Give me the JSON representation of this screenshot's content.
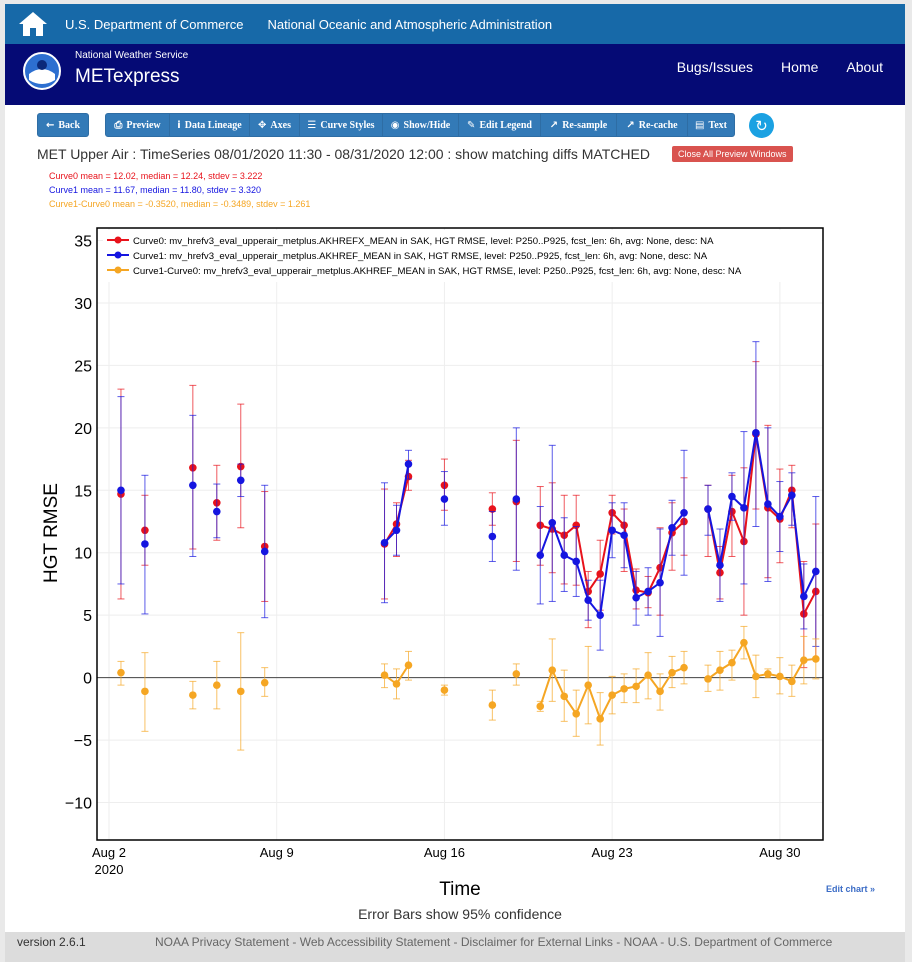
{
  "topbar": {
    "dept": "U.S. Department of Commerce",
    "noaa": "National Oceanic and Atmospheric Administration"
  },
  "navbar": {
    "nws": "National Weather Service",
    "brand": "METexpress",
    "links": [
      "Bugs/Issues",
      "Home",
      "About"
    ]
  },
  "toolbar": {
    "back": "Back",
    "buttons": [
      "Preview",
      "Data Lineage",
      "Axes",
      "Curve Styles",
      "Show/Hide",
      "Edit Legend",
      "Re-sample",
      "Re-cache",
      "Text"
    ]
  },
  "plot_title": "MET Upper Air : TimeSeries 08/01/2020 11:30 - 08/31/2020 12:00 : show matching diffs MATCHED",
  "close_label": "Close All Preview Windows",
  "stats": [
    "Curve0 mean = 12.02, median = 12.24, stdev = 3.222",
    "Curve1 mean = 11.67, median = 11.80, stdev = 3.320",
    "Curve1-Curve0 mean = -0.3520, median = -0.3489, stdev = 1.261"
  ],
  "edit_chart": "Edit chart »",
  "error_note": "Error Bars show 95% confidence",
  "footer": {
    "version": "version 2.6.1",
    "links": "NOAA Privacy Statement - Web Accessibility Statement - Disclaimer for External Links - NOAA - U.S. Department of Commerce"
  },
  "colors": {
    "curve0": "#e8121b",
    "curve1": "#1515e0",
    "diff": "#f5a623",
    "brand_top": "#1769a8",
    "brand_nav": "#050a75"
  },
  "chart_data": {
    "type": "line",
    "xlabel": "Time",
    "ylabel": "HGT RMSE",
    "ylim": [
      -13,
      36
    ],
    "xlim": [
      1.5,
      31.8
    ],
    "x_tick_values": [
      2,
      9,
      16,
      23,
      30
    ],
    "x_ticks": [
      "Aug 2",
      "Aug 9",
      "Aug 16",
      "Aug 23",
      "Aug 30"
    ],
    "x_year": "2020",
    "y_ticks": [
      -10,
      -5,
      0,
      5,
      10,
      15,
      20,
      25,
      30,
      35
    ],
    "legend_position": "top-right",
    "series": [
      {
        "name": "Curve0: mv_hrefv3_eval_upperair_metplus.AKHREFX_MEAN in SAK, HGT RMSE, level: P250..P925, fcst_len: 6h, avg: None, desc: NA",
        "color": "#e8121b",
        "points": [
          [
            2.5,
            14.7,
            6.3,
            23.1
          ],
          [
            3.5,
            11.8,
            9.0,
            14.6
          ],
          [
            5.5,
            16.8,
            10.3,
            23.4
          ],
          [
            6.5,
            14.0,
            11.0,
            17.0
          ],
          [
            7.5,
            16.9,
            12.0,
            21.9
          ],
          [
            8.5,
            10.5,
            6.1,
            14.9
          ],
          [
            13.5,
            10.7,
            6.3,
            15.1
          ],
          [
            14.0,
            12.3,
            9.7,
            14.0
          ],
          [
            14.5,
            16.1,
            15.0,
            17.4
          ],
          [
            16.0,
            15.4,
            13.4,
            17.5
          ],
          [
            18.0,
            13.5,
            12.2,
            14.8
          ],
          [
            19.0,
            14.1,
            9.3,
            19.0
          ],
          [
            20.0,
            12.2,
            9.0,
            15.3
          ],
          [
            20.5,
            11.9,
            8.4,
            15.6
          ],
          [
            21.0,
            11.4,
            7.5,
            14.6
          ],
          [
            21.5,
            12.2,
            7.4,
            14.6
          ],
          [
            22.0,
            6.9,
            4.0,
            8.5
          ],
          [
            22.5,
            8.3,
            5.4,
            11.0
          ],
          [
            23.0,
            13.2,
            11.5,
            14.6
          ],
          [
            23.5,
            12.2,
            8.5,
            13.5
          ],
          [
            24.0,
            7.0,
            5.5,
            8.7
          ],
          [
            24.5,
            6.8,
            5.6,
            8.1
          ],
          [
            25.0,
            8.8,
            5.0,
            12.0
          ],
          [
            25.5,
            11.6,
            8.6,
            14.0
          ],
          [
            26.0,
            12.5,
            9.8,
            16.0
          ],
          [
            27.0,
            13.5,
            9.7,
            15.4
          ],
          [
            27.5,
            8.4,
            6.3,
            10.5
          ],
          [
            28.0,
            13.3,
            9.7,
            16.2
          ],
          [
            28.5,
            10.9,
            5.0,
            16.8
          ],
          [
            29.0,
            19.5,
            13.5,
            25.3
          ],
          [
            29.5,
            13.6,
            8.0,
            20.2
          ],
          [
            30.0,
            12.7,
            9.2,
            16.7
          ],
          [
            30.5,
            15.0,
            12.0,
            17.0
          ],
          [
            31.0,
            5.1,
            0.8,
            9.3
          ],
          [
            31.5,
            6.9,
            1.5,
            12.3
          ]
        ]
      },
      {
        "name": "Curve1: mv_hrefv3_eval_upperair_metplus.AKHREF_MEAN in SAK, HGT RMSE, level: P250..P925, fcst_len: 6h, avg: None, desc: NA",
        "color": "#1515e0",
        "points": [
          [
            2.5,
            15.0,
            7.5,
            22.5
          ],
          [
            3.5,
            10.7,
            5.1,
            16.2
          ],
          [
            5.5,
            15.4,
            9.7,
            21.0
          ],
          [
            6.5,
            13.3,
            11.2,
            15.5
          ],
          [
            7.5,
            15.8,
            14.5,
            17.1
          ],
          [
            8.5,
            10.1,
            4.8,
            15.4
          ],
          [
            13.5,
            10.8,
            6.0,
            15.6
          ],
          [
            14.0,
            11.8,
            9.8,
            13.8
          ],
          [
            14.5,
            17.1,
            15.9,
            18.2
          ],
          [
            16.0,
            14.3,
            12.2,
            16.5
          ],
          [
            18.0,
            11.3,
            9.3,
            13.3
          ],
          [
            19.0,
            14.3,
            8.6,
            20.0
          ],
          [
            20.0,
            9.8,
            5.9,
            13.7
          ],
          [
            20.5,
            12.4,
            6.1,
            18.6
          ],
          [
            21.0,
            9.8,
            6.9,
            12.8
          ],
          [
            21.5,
            9.3,
            6.5,
            12.1
          ],
          [
            22.0,
            6.2,
            4.6,
            7.8
          ],
          [
            22.5,
            5.0,
            2.2,
            7.8
          ],
          [
            23.0,
            11.8,
            9.6,
            14.0
          ],
          [
            23.5,
            11.4,
            8.8,
            14.0
          ],
          [
            24.0,
            6.4,
            4.2,
            8.5
          ],
          [
            24.5,
            6.9,
            5.0,
            8.8
          ],
          [
            25.0,
            7.6,
            3.3,
            11.9
          ],
          [
            25.5,
            12.0,
            9.8,
            14.2
          ],
          [
            26.0,
            13.2,
            8.2,
            18.2
          ],
          [
            27.0,
            13.5,
            11.4,
            15.4
          ],
          [
            27.5,
            9.0,
            6.1,
            11.9
          ],
          [
            28.0,
            14.5,
            12.6,
            16.4
          ],
          [
            28.5,
            13.6,
            7.5,
            19.7
          ],
          [
            29.0,
            19.6,
            12.1,
            26.9
          ],
          [
            29.5,
            13.9,
            7.7,
            20.0
          ],
          [
            30.0,
            12.9,
            10.1,
            15.7
          ],
          [
            30.5,
            14.6,
            12.2,
            16.4
          ],
          [
            31.0,
            6.5,
            3.9,
            9.1
          ],
          [
            31.5,
            8.5,
            2.5,
            14.5
          ]
        ]
      },
      {
        "name": "Curve1-Curve0: mv_hrefv3_eval_upperair_metplus.AKHREF_MEAN in SAK, HGT RMSE, level: P250..P925, fcst_len: 6h, avg: None, desc: NA",
        "color": "#f5a623",
        "points": [
          [
            2.5,
            0.4,
            -0.6,
            1.3
          ],
          [
            3.5,
            -1.1,
            -4.3,
            2.0
          ],
          [
            5.5,
            -1.4,
            -2.5,
            -0.3
          ],
          [
            6.5,
            -0.6,
            -2.5,
            1.3
          ],
          [
            7.5,
            -1.1,
            -5.8,
            3.6
          ],
          [
            8.5,
            -0.4,
            -1.5,
            0.8
          ],
          [
            13.5,
            0.2,
            -0.8,
            1.1
          ],
          [
            14.0,
            -0.5,
            -1.7,
            0.7
          ],
          [
            14.5,
            1.0,
            -0.2,
            2.1
          ],
          [
            16.0,
            -1.0,
            -1.4,
            -0.6
          ],
          [
            18.0,
            -2.2,
            -3.4,
            -1.0
          ],
          [
            19.0,
            0.3,
            -0.6,
            1.1
          ],
          [
            20.0,
            -2.3,
            -2.7,
            -1.9
          ],
          [
            20.5,
            0.6,
            -1.9,
            3.1
          ],
          [
            21.0,
            -1.5,
            -3.5,
            0.6
          ],
          [
            21.5,
            -2.9,
            -4.7,
            -1.0
          ],
          [
            22.0,
            -0.6,
            -3.7,
            2.5
          ],
          [
            22.5,
            -3.3,
            -5.4,
            -1.2
          ],
          [
            23.0,
            -1.4,
            -2.9,
            0.1
          ],
          [
            23.5,
            -0.9,
            -2.0,
            0.3
          ],
          [
            24.0,
            -0.7,
            -2.0,
            0.7
          ],
          [
            24.5,
            0.2,
            -1.7,
            2.0
          ],
          [
            25.0,
            -1.1,
            -2.6,
            0.3
          ],
          [
            25.5,
            0.4,
            -0.8,
            1.7
          ],
          [
            26.0,
            0.8,
            -0.5,
            2.1
          ],
          [
            27.0,
            -0.1,
            -1.1,
            1.0
          ],
          [
            27.5,
            0.6,
            -1.0,
            2.1
          ],
          [
            28.0,
            1.2,
            -0.2,
            2.2
          ],
          [
            28.5,
            2.8,
            1.5,
            4.1
          ],
          [
            29.0,
            0.1,
            -1.6,
            1.8
          ],
          [
            29.5,
            0.3,
            0.0,
            0.7
          ],
          [
            30.0,
            0.1,
            -1.3,
            1.6
          ],
          [
            30.5,
            -0.3,
            -1.5,
            1.0
          ],
          [
            31.0,
            1.4,
            -0.5,
            3.3
          ],
          [
            31.5,
            1.5,
            -0.1,
            3.1
          ]
        ]
      }
    ]
  }
}
